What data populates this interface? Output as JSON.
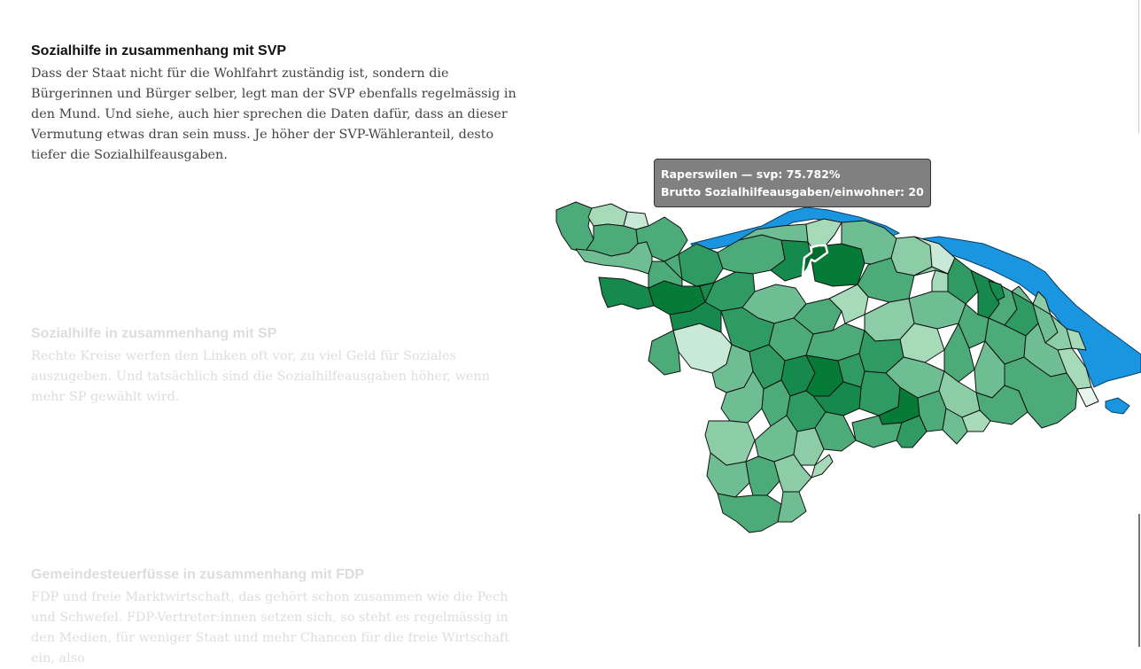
{
  "steps": [
    {
      "title": "Sozialhilfe in zusammenhang mit SVP",
      "text": "Dass der Staat nicht für die Wohlfahrt zuständig ist, sondern die Bürgerinnen und Bürger selber, legt man der SVP ebenfalls regelmässig in den Mund. Und siehe, auch hier sprechen die Daten dafür, dass an dieser Vermutung etwas dran sein muss. Je höher der SVP-Wähleranteil, desto tiefer die Sozialhilfeausgaben.",
      "state": "active"
    },
    {
      "title": "Sozialhilfe in zusammenhang mit SP",
      "text": "Rechte Kreise werfen den Linken oft vor, zu viel Geld für Soziales auszugeben. Und tatsächlich sind die Sozialhilfeausgaben höher, wenn mehr SP gewählt wird.",
      "state": "inactive"
    },
    {
      "title": "Gemeindesteuerfüsse in zusammenhang mit FDP",
      "text": "FDP und freie Marktwirtschaft, das gehört schon zusammen wie die Pech und Schwefel. FDP-Vertreter:innen setzen sich, so steht es regelmässig in den Medien, für weniger Staat und mehr Chancen für die freie Wirtschaft ein, also",
      "state": "inactive"
    }
  ],
  "tooltip": {
    "line1": "Raperswilen — svp: 75.782%",
    "line2": "Brutto Sozialhilfeausgaben/einwohner: 20"
  },
  "map": {
    "water_color": "#1a95e0",
    "palette": [
      "#e8f5ec",
      "#c7e9d5",
      "#a6dab9",
      "#8ccca6",
      "#6fbe93",
      "#4cab79",
      "#2f9a61",
      "#168a4c",
      "#067a37",
      "#006a2a"
    ]
  }
}
